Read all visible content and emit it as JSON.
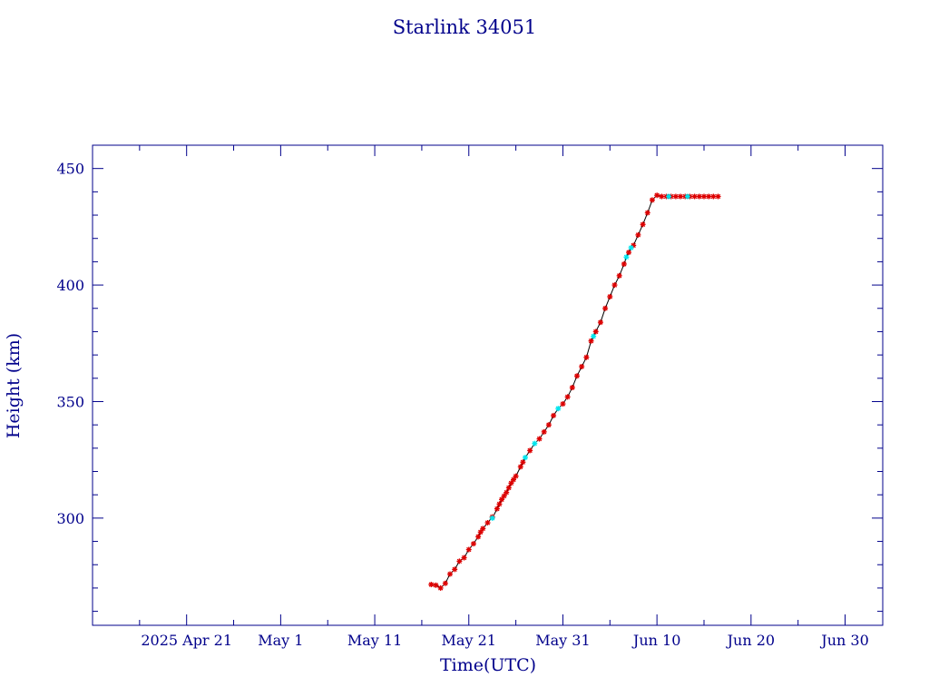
{
  "chart_data": {
    "type": "scatter",
    "title": "Starlink 34051",
    "xlabel": "Time(UTC)",
    "ylabel": "Height (km)",
    "x_range": [
      "2025-04-11",
      "2025-07-04"
    ],
    "ylim": [
      254,
      460
    ],
    "x_ticks": [
      {
        "date": "2025-04-21",
        "label": "2025 Apr 21"
      },
      {
        "date": "2025-05-01",
        "label": "May  1"
      },
      {
        "date": "2025-05-11",
        "label": "May 11"
      },
      {
        "date": "2025-05-21",
        "label": "May 21"
      },
      {
        "date": "2025-05-31",
        "label": "May 31"
      },
      {
        "date": "2025-06-10",
        "label": "Jun 10"
      },
      {
        "date": "2025-06-20",
        "label": "Jun 20"
      },
      {
        "date": "2025-06-30",
        "label": "Jun 30"
      }
    ],
    "x_minor_ticks": [
      "2025-04-16",
      "2025-04-26",
      "2025-05-06",
      "2025-05-16",
      "2025-05-26",
      "2025-06-05",
      "2025-06-15",
      "2025-06-25",
      "2025-07-05"
    ],
    "y_ticks": [
      300,
      350,
      400,
      450
    ],
    "y_minor_ticks": [
      260,
      270,
      280,
      290,
      310,
      320,
      330,
      340,
      360,
      370,
      380,
      390,
      410,
      420,
      430,
      440
    ],
    "grid": false,
    "colors": {
      "axis": "#00008b",
      "line": "#000000",
      "red_marker": "#dd0000",
      "cyan_marker": "#00e5ee"
    },
    "series": [
      {
        "marker_color": "red",
        "points": [
          [
            "2025-05-17T00:00",
            271.5
          ],
          [
            "2025-05-17T12:00",
            271.2
          ],
          [
            "2025-05-18T00:00",
            270.0
          ],
          [
            "2025-05-18T12:00",
            272.0
          ],
          [
            "2025-05-19T00:00",
            276.0
          ],
          [
            "2025-05-19T12:00",
            278.0
          ],
          [
            "2025-05-20T00:00",
            281.5
          ],
          [
            "2025-05-20T12:00",
            283.0
          ],
          [
            "2025-05-21T00:00",
            286.5
          ],
          [
            "2025-05-21T12:00",
            289.0
          ],
          [
            "2025-05-22T00:00",
            292.0
          ],
          [
            "2025-05-22T06:00",
            294.0
          ],
          [
            "2025-05-22T12:00",
            295.5
          ],
          [
            "2025-05-23T00:00",
            298.0
          ],
          [
            "2025-05-23T12:00",
            300.5
          ],
          [
            "2025-05-24T00:00",
            304.0
          ],
          [
            "2025-05-24T06:00",
            306.0
          ],
          [
            "2025-05-24T12:00",
            308.0
          ],
          [
            "2025-05-24T18:00",
            309.5
          ],
          [
            "2025-05-25T00:00",
            311.0
          ],
          [
            "2025-05-25T06:00",
            313.0
          ],
          [
            "2025-05-25T12:00",
            315.0
          ],
          [
            "2025-05-25T18:00",
            316.5
          ],
          [
            "2025-05-26T00:00",
            318.0
          ],
          [
            "2025-05-26T12:00",
            322.0
          ],
          [
            "2025-05-26T18:00",
            324.0
          ],
          [
            "2025-05-27T12:00",
            329.0
          ],
          [
            "2025-05-28T12:00",
            334.0
          ],
          [
            "2025-05-29T00:00",
            337.0
          ],
          [
            "2025-05-29T12:00",
            340.0
          ],
          [
            "2025-05-30T00:00",
            344.0
          ],
          [
            "2025-05-31T00:00",
            349.0
          ],
          [
            "2025-05-31T12:00",
            352.0
          ],
          [
            "2025-06-01T00:00",
            356.0
          ],
          [
            "2025-06-01T12:00",
            361.0
          ],
          [
            "2025-06-02T00:00",
            365.0
          ],
          [
            "2025-06-02T12:00",
            369.0
          ],
          [
            "2025-06-03T00:00",
            376.0
          ],
          [
            "2025-06-03T12:00",
            380.0
          ],
          [
            "2025-06-04T00:00",
            384.0
          ],
          [
            "2025-06-04T12:00",
            390.0
          ],
          [
            "2025-06-05T00:00",
            395.0
          ],
          [
            "2025-06-05T12:00",
            400.0
          ],
          [
            "2025-06-06T00:00",
            404.0
          ],
          [
            "2025-06-06T12:00",
            409.0
          ],
          [
            "2025-06-07T00:00",
            414.0
          ],
          [
            "2025-06-07T12:00",
            417.0
          ],
          [
            "2025-06-08T00:00",
            421.5
          ],
          [
            "2025-06-08T12:00",
            426.0
          ],
          [
            "2025-06-09T00:00",
            431.0
          ],
          [
            "2025-06-09T12:00",
            436.5
          ],
          [
            "2025-06-10T00:00",
            438.5
          ],
          [
            "2025-06-10T12:00",
            438.0
          ],
          [
            "2025-06-11T00:00",
            438.0
          ],
          [
            "2025-06-11T12:00",
            438.0
          ],
          [
            "2025-06-12T00:00",
            438.0
          ],
          [
            "2025-06-12T12:00",
            438.0
          ],
          [
            "2025-06-13T00:00",
            438.0
          ],
          [
            "2025-06-13T12:00",
            438.0
          ],
          [
            "2025-06-14T00:00",
            438.0
          ],
          [
            "2025-06-14T12:00",
            438.0
          ],
          [
            "2025-06-15T00:00",
            438.0
          ],
          [
            "2025-06-15T12:00",
            438.0
          ],
          [
            "2025-06-16T00:00",
            438.0
          ],
          [
            "2025-06-16T12:00",
            438.0
          ]
        ]
      },
      {
        "marker_color": "cyan",
        "points": [
          [
            "2025-05-23T12:00",
            300.0
          ],
          [
            "2025-05-27T00:00",
            326.0
          ],
          [
            "2025-05-28T00:00",
            332.0
          ],
          [
            "2025-05-30T12:00",
            347.0
          ],
          [
            "2025-06-03T06:00",
            378.0
          ],
          [
            "2025-06-06T18:00",
            412.0
          ],
          [
            "2025-06-07T06:00",
            416.0
          ],
          [
            "2025-06-11T06:00",
            438.0
          ],
          [
            "2025-06-13T06:00",
            438.0
          ]
        ]
      }
    ]
  }
}
